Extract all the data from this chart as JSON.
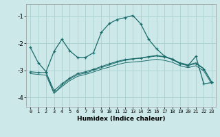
{
  "xlabel": "Humidex (Indice chaleur)",
  "background_color": "#cce8e8",
  "grid_color": "#aad0d0",
  "line_color": "#1a6b6b",
  "xlim": [
    -0.5,
    23.5
  ],
  "ylim": [
    -4.35,
    -0.55
  ],
  "yticks": [
    -4,
    -3,
    -2,
    -1
  ],
  "xticks": [
    0,
    1,
    2,
    3,
    4,
    5,
    6,
    7,
    8,
    9,
    10,
    11,
    12,
    13,
    14,
    15,
    16,
    17,
    18,
    19,
    20,
    21,
    22,
    23
  ],
  "s1_x": [
    0,
    1,
    2,
    3,
    4,
    5,
    6,
    7,
    8,
    9,
    10,
    11,
    12,
    13,
    14,
    15,
    16,
    17,
    18,
    19,
    20,
    21,
    22,
    23
  ],
  "s1_y": [
    -2.15,
    -2.72,
    -3.05,
    -2.3,
    -1.85,
    -2.28,
    -2.52,
    -2.52,
    -2.35,
    -1.6,
    -1.27,
    -1.12,
    -1.05,
    -0.97,
    -1.28,
    -1.85,
    -2.2,
    -2.47,
    -2.6,
    -2.75,
    -2.82,
    -2.48,
    -3.5,
    -3.45
  ],
  "s2_x": [
    0,
    1,
    2,
    3,
    4,
    5,
    6,
    7,
    8,
    9,
    10,
    11,
    12,
    13,
    14,
    15,
    16,
    17,
    18,
    19,
    20,
    21,
    22,
    23
  ],
  "s2_y": [
    -3.05,
    -3.08,
    -3.08,
    -3.75,
    -3.5,
    -3.28,
    -3.12,
    -3.05,
    -2.96,
    -2.86,
    -2.76,
    -2.67,
    -2.6,
    -2.57,
    -2.54,
    -2.49,
    -2.45,
    -2.49,
    -2.58,
    -2.75,
    -2.82,
    -2.75,
    -2.95,
    -3.43
  ],
  "s3_x": [
    0,
    1,
    2,
    3,
    4,
    5,
    6,
    7,
    8,
    9,
    10,
    11,
    12,
    13,
    14,
    15,
    16,
    17,
    18,
    19,
    20,
    21,
    22,
    23
  ],
  "s3_y": [
    -3.12,
    -3.15,
    -3.18,
    -3.85,
    -3.6,
    -3.38,
    -3.22,
    -3.15,
    -3.06,
    -2.96,
    -2.88,
    -2.79,
    -2.72,
    -2.69,
    -2.67,
    -2.63,
    -2.59,
    -2.63,
    -2.7,
    -2.83,
    -2.9,
    -2.83,
    -3.02,
    -3.5
  ],
  "s4_x": [
    2,
    3,
    4,
    5,
    6,
    7,
    8,
    9,
    10,
    11,
    12,
    13,
    14,
    15,
    16,
    17,
    18,
    19,
    20,
    21,
    22,
    23
  ],
  "s4_y": [
    -3.08,
    -3.85,
    -3.55,
    -3.32,
    -3.16,
    -3.1,
    -3.0,
    -2.9,
    -2.8,
    -2.7,
    -2.63,
    -2.58,
    -2.55,
    -2.51,
    -2.47,
    -2.51,
    -2.59,
    -2.72,
    -2.79,
    -2.72,
    -2.93,
    -3.43
  ]
}
